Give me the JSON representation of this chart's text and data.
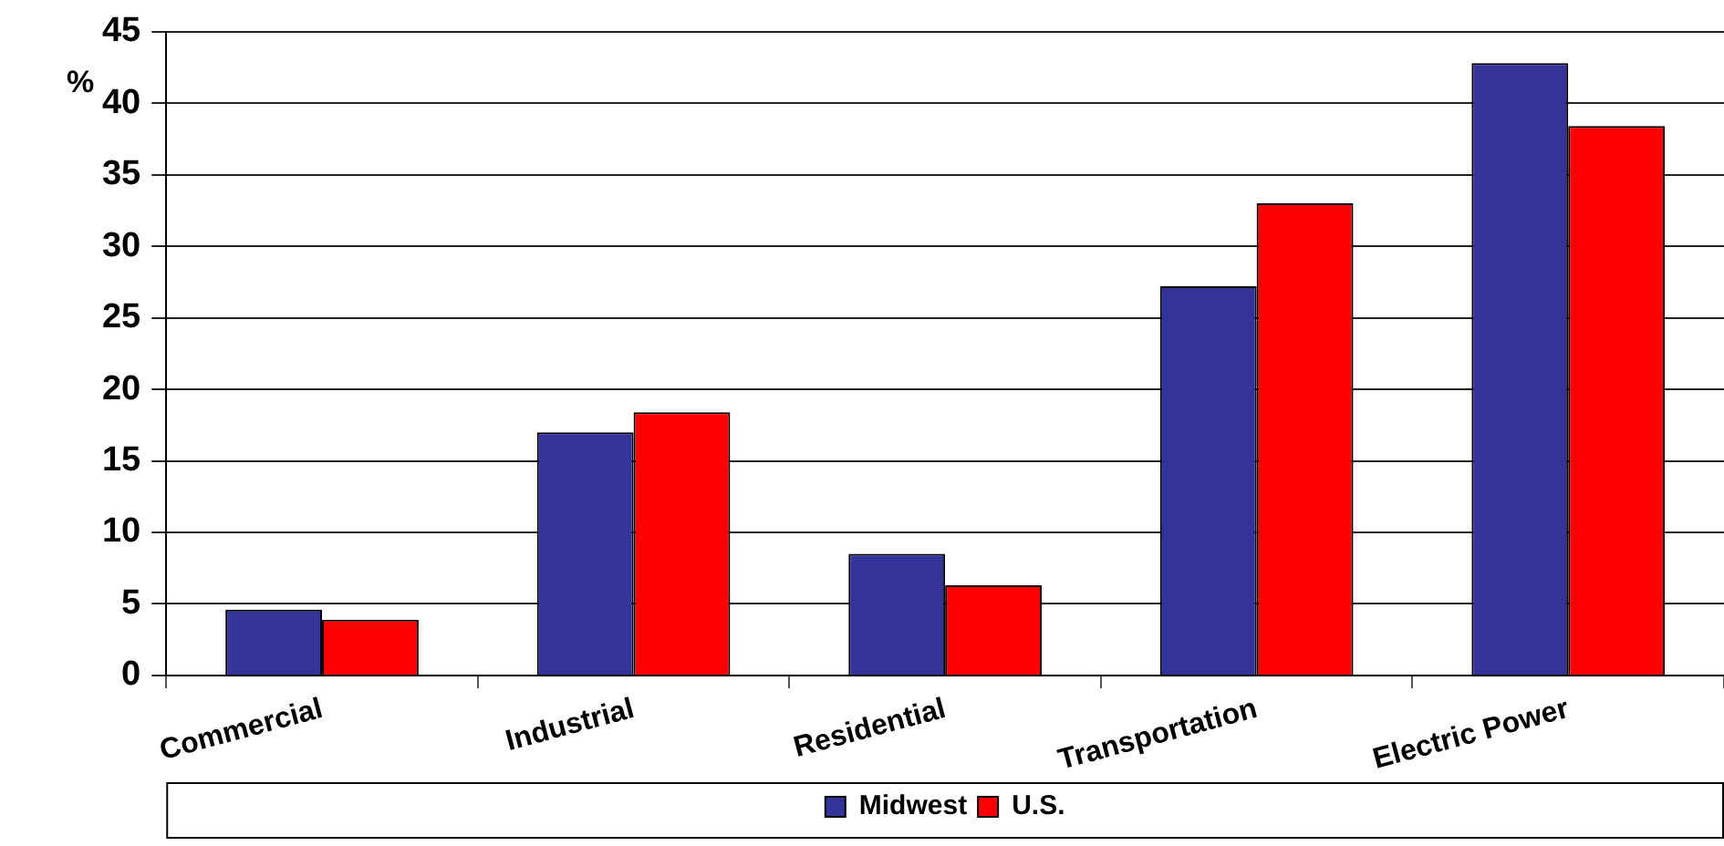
{
  "chart_data": {
    "type": "bar",
    "ylabel": "%",
    "categories": [
      "Commercial",
      "Industrial",
      "Residential",
      "Transportation",
      "Electric Power"
    ],
    "series": [
      {
        "name": "Midwest",
        "color": "#333399",
        "values": [
          4.6,
          17.0,
          8.5,
          27.2,
          42.8
        ]
      },
      {
        "name": "U.S.",
        "color": "#ff0000",
        "values": [
          3.9,
          18.4,
          6.3,
          33.0,
          38.4
        ]
      }
    ],
    "ylim": [
      0,
      45
    ],
    "yticks": [
      0,
      5,
      10,
      15,
      20,
      25,
      30,
      35,
      40,
      45
    ],
    "grid": "y",
    "legend": "bottom"
  }
}
